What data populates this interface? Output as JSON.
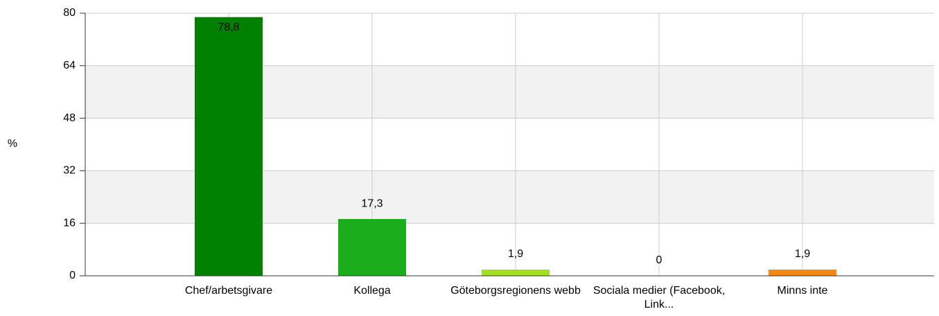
{
  "chart_data": {
    "type": "bar",
    "y_label": "%",
    "categories": [
      "Chef/arbetsgivare",
      "Kollega",
      "Göteborgsregionens webb",
      "Sociala medier (Facebook, Link...",
      "Minns inte"
    ],
    "values": [
      78.8,
      17.3,
      1.9,
      0,
      1.9
    ],
    "value_labels": [
      "78,8",
      "17,3",
      "1,9",
      "0",
      "1,9"
    ],
    "colors": [
      "#008000",
      "#1cad1c",
      "#a5df22",
      "#7fbf3f",
      "#f7870f"
    ],
    "ylim": [
      0,
      80
    ],
    "yticks": [
      0,
      16,
      32,
      48,
      64,
      80
    ],
    "grid": true,
    "alternating_bands": true
  }
}
